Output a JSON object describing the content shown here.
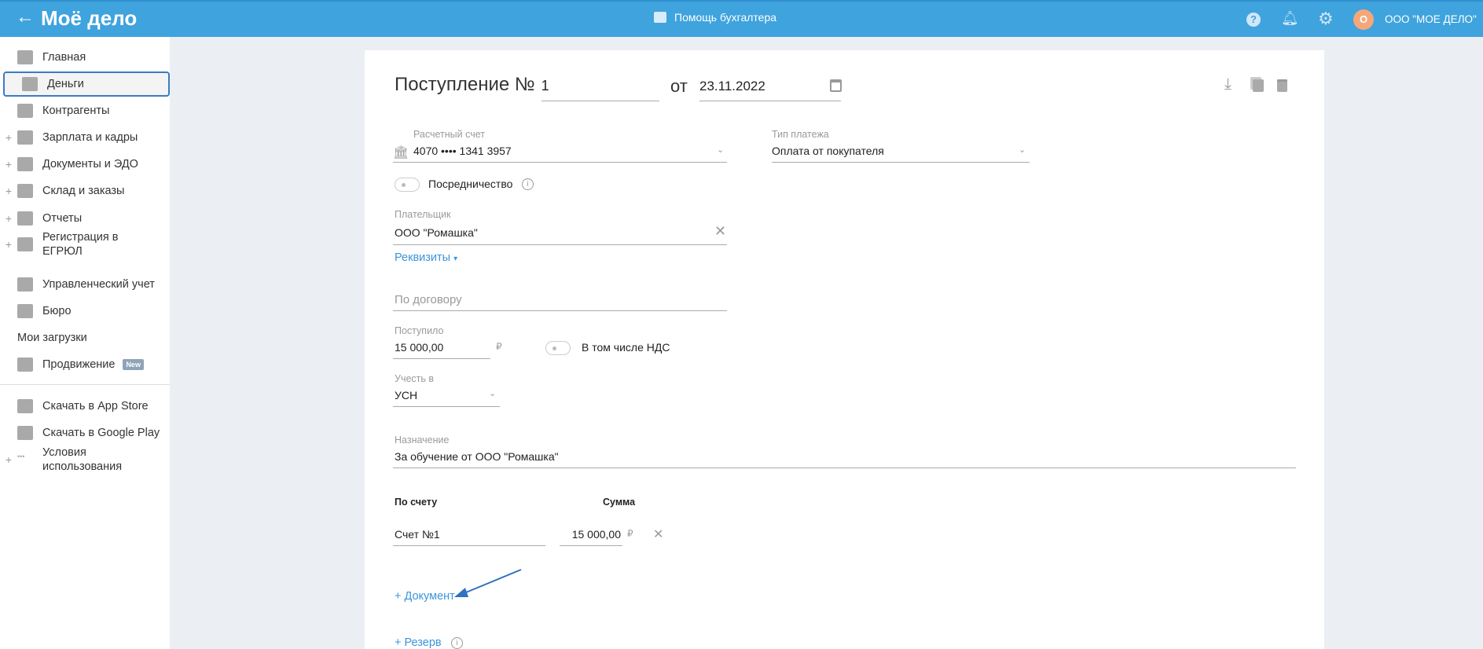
{
  "header": {
    "logo": "Moё дело",
    "center_label": "Помощь бухгалтера",
    "company": "ООО \"МОЕ ДЕЛО\"",
    "avatar_letter": "О",
    "colors": {
      "bar": "#3fa3de",
      "avatar": "#f5a77a"
    }
  },
  "sidebar": {
    "items": [
      {
        "label": "Главная",
        "icon": "home-icon",
        "plus": false
      },
      {
        "label": "Деньги",
        "icon": "money-icon",
        "plus": false,
        "active": true
      },
      {
        "label": "Контрагенты",
        "icon": "person-icon",
        "plus": false
      },
      {
        "label": "Зарплата и кадры",
        "icon": "wallet-icon",
        "plus": true
      },
      {
        "label": "Документы и ЭДО",
        "icon": "folder-icon",
        "plus": true
      },
      {
        "label": "Склад и заказы",
        "icon": "warehouse-icon",
        "plus": true
      },
      {
        "label": "Отчеты",
        "icon": "report-icon",
        "plus": true
      },
      {
        "label": "Регистрация в ЕГРЮЛ",
        "icon": "registration-icon",
        "plus": true
      },
      {
        "label": "Управленческий учет",
        "icon": "ruble-chart-icon",
        "plus": false
      },
      {
        "label": "Бюро",
        "icon": "briefcase-icon",
        "plus": false
      },
      {
        "label": "Мои загрузки",
        "plus": false
      },
      {
        "label": "Продвижение",
        "icon": "promo-icon",
        "plus": false,
        "badge": "New"
      },
      {
        "label": "Скачать в App Store",
        "icon": "apple-icon",
        "plus": false
      },
      {
        "label": "Скачать в Google Play",
        "icon": "google-play-icon",
        "plus": false
      },
      {
        "label": "Условия использования",
        "icon": "more-icon",
        "plus": true
      }
    ]
  },
  "form": {
    "title": "Поступление №",
    "number": "1",
    "date_prefix": "от",
    "date": "23.11.2022",
    "account_label": "Расчетный счет",
    "account_value": "4070 •••• 1341 3957",
    "payment_type_label": "Тип платежа",
    "payment_type_value": "Оплата от покупателя",
    "mediation_label": "Посредничество",
    "payer_label": "Плательщик",
    "payer_value": "ООО \"Ромашка\"",
    "requisites_link": "Реквизиты",
    "contract_placeholder": "По договору",
    "received_label": "Поступило",
    "received_value": "15 000,00",
    "currency": "₽",
    "vat_label": "В том числе НДС",
    "account_in_label": "Учесть в",
    "account_in_value": "УСН",
    "purpose_label": "Назначение",
    "purpose_value": "За обучение от ООО \"Ромашка\"",
    "col_account": "По счету",
    "col_sum": "Сумма",
    "row_account": "Счет №1",
    "row_sum": "15 000,00",
    "add_document": "+ Документ",
    "add_reserve": "+ Резерв"
  }
}
